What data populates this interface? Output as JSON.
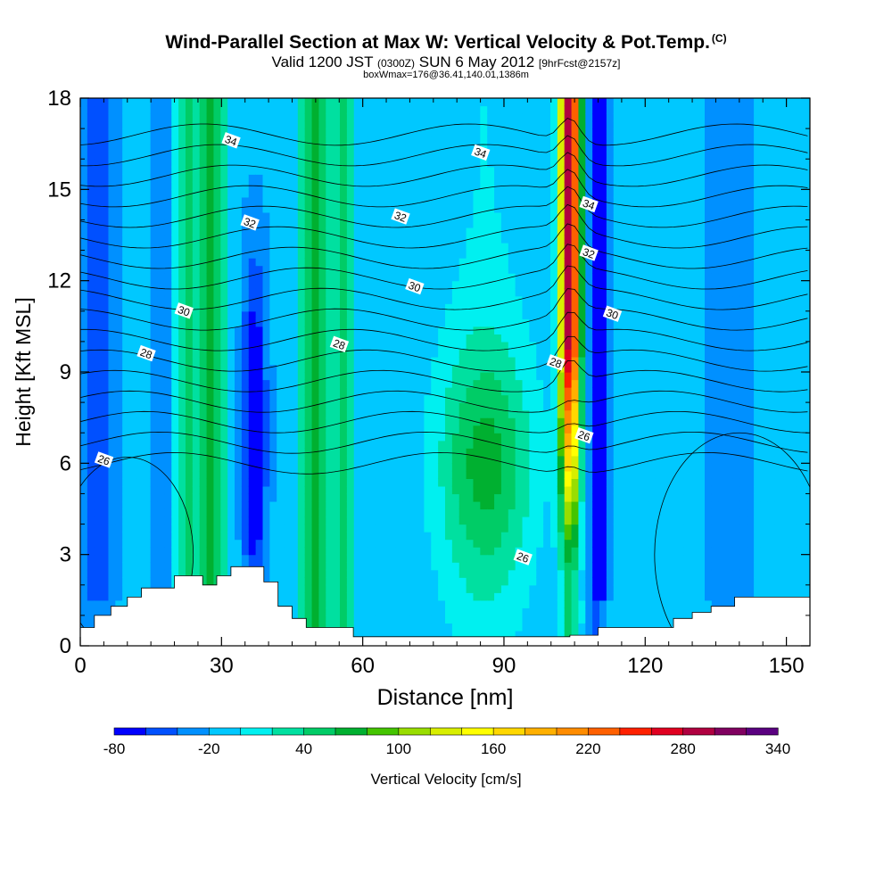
{
  "header": {
    "title": "Wind-Parallel Section at Max W: Vertical Velocity & Pot.Temp.",
    "title_suffix": "(C)",
    "subtitle_valid": "Valid 1200 JST",
    "subtitle_utc": "(0300Z)",
    "subtitle_date": "SUN 6 May 2012",
    "subtitle_fcst": "[9hrFcst@2157z]",
    "subtitle2": "boxWmax=176@36.41,140.01,1386m"
  },
  "chart_data": {
    "type": "heatmap",
    "xlabel": "Distance [nm]",
    "ylabel": "Height [Kft MSL]",
    "xlim": [
      0,
      155
    ],
    "ylim": [
      0,
      18
    ],
    "x_ticks": [
      0,
      30,
      60,
      90,
      120,
      150
    ],
    "y_ticks": [
      0,
      3,
      6,
      9,
      12,
      15,
      18
    ],
    "colorbar": {
      "label": "Vertical Velocity [cm/s]",
      "min": -80,
      "step": 20,
      "tick_labels": [
        "-80",
        "-20",
        "40",
        "100",
        "160",
        "220",
        "280",
        "340"
      ],
      "tick_values": [
        -80,
        -20,
        40,
        100,
        160,
        220,
        280,
        340
      ],
      "colors": [
        "#0000ff",
        "#0050ff",
        "#0090ff",
        "#00c8ff",
        "#00f0f0",
        "#00e0a0",
        "#00cc66",
        "#00b030",
        "#44c400",
        "#99dd00",
        "#d8ee00",
        "#ffff00",
        "#ffd700",
        "#ffb000",
        "#ff8c00",
        "#ff6000",
        "#ff2000",
        "#e00020",
        "#b00040",
        "#800060",
        "#5a0080"
      ]
    },
    "updraft_columns": [
      {
        "x": 22,
        "width": 3,
        "max": 50
      },
      {
        "x": 28,
        "width": 3,
        "max": 60
      },
      {
        "x": 50,
        "width": 3.5,
        "max": 60
      },
      {
        "x": 56,
        "width": 2.5,
        "max": 40
      },
      {
        "x": 86,
        "width": 10,
        "max": 70
      },
      {
        "x": 104,
        "width": 2.2,
        "max": 300
      }
    ],
    "downdraft_columns": [
      {
        "x": 4,
        "width": 3,
        "min": -60
      },
      {
        "x": 19,
        "width": 2.5,
        "min": -50
      },
      {
        "x": 37,
        "width": 2.5,
        "min": -80
      },
      {
        "x": 110,
        "width": 1.8,
        "min": -80
      },
      {
        "x": 138,
        "width": 4,
        "min": -40
      }
    ],
    "theta_contour_labels": [
      {
        "text": "34",
        "x": 32,
        "y": 16.6
      },
      {
        "text": "34",
        "x": 85,
        "y": 16.2
      },
      {
        "text": "34",
        "x": 108,
        "y": 14.5
      },
      {
        "text": "32",
        "x": 36,
        "y": 13.9
      },
      {
        "text": "32",
        "x": 68,
        "y": 14.1
      },
      {
        "text": "32",
        "x": 108,
        "y": 12.9
      },
      {
        "text": "30",
        "x": 22,
        "y": 11
      },
      {
        "text": "30",
        "x": 71,
        "y": 11.8
      },
      {
        "text": "30",
        "x": 113,
        "y": 10.9
      },
      {
        "text": "28",
        "x": 14,
        "y": 9.6
      },
      {
        "text": "28",
        "x": 55,
        "y": 9.9
      },
      {
        "text": "28",
        "x": 101,
        "y": 9.3
      },
      {
        "text": "26",
        "x": 5,
        "y": 6.1
      },
      {
        "text": "26",
        "x": 107,
        "y": 6.9
      },
      {
        "text": "26",
        "x": 94,
        "y": 2.9
      }
    ],
    "terrain": [
      [
        0,
        0.6
      ],
      [
        3,
        0.6
      ],
      [
        3,
        1
      ],
      [
        6.5,
        1
      ],
      [
        6.5,
        1.3
      ],
      [
        10,
        1.3
      ],
      [
        10,
        1.6
      ],
      [
        13,
        1.6
      ],
      [
        13,
        1.9
      ],
      [
        20,
        1.9
      ],
      [
        20,
        2.3
      ],
      [
        26,
        2.3
      ],
      [
        26,
        2
      ],
      [
        29,
        2
      ],
      [
        29,
        2.3
      ],
      [
        32,
        2.3
      ],
      [
        32,
        2.6
      ],
      [
        39,
        2.6
      ],
      [
        39,
        2.1
      ],
      [
        42,
        2.1
      ],
      [
        42,
        1.3
      ],
      [
        45,
        1.3
      ],
      [
        45,
        0.9
      ],
      [
        48,
        0.9
      ],
      [
        48,
        0.6
      ],
      [
        58,
        0.6
      ],
      [
        58,
        0.3
      ],
      [
        104,
        0.3
      ],
      [
        104,
        0.35
      ],
      [
        110,
        0.35
      ],
      [
        110,
        0.6
      ],
      [
        126,
        0.6
      ],
      [
        126,
        0.9
      ],
      [
        130,
        0.9
      ],
      [
        130,
        1.1
      ],
      [
        134,
        1.1
      ],
      [
        134,
        1.3
      ],
      [
        139,
        1.3
      ],
      [
        139,
        1.6
      ],
      [
        155,
        1.6
      ]
    ]
  }
}
